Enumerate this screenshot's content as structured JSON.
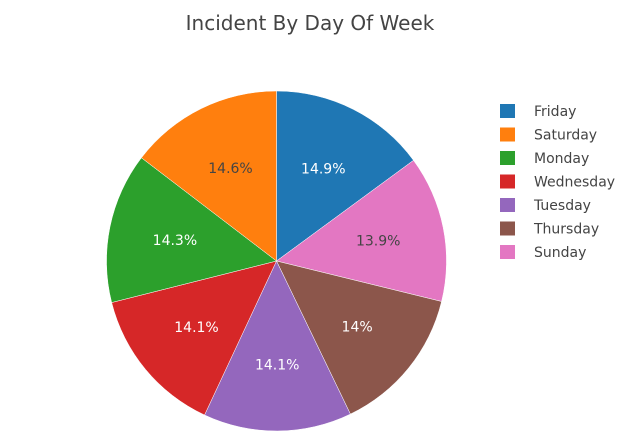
{
  "chart_data": {
    "type": "pie",
    "title": "Incident By Day Of Week",
    "legend_position": "right",
    "slices": [
      {
        "label": "Friday",
        "percent": 14.9,
        "display": "14.9%",
        "color": "#1f77b4",
        "text_color": "#ffffff"
      },
      {
        "label": "Sunday",
        "percent": 13.9,
        "display": "13.9%",
        "color": "#e377c2",
        "text_color": "#444444"
      },
      {
        "label": "Thursday",
        "percent": 14.0,
        "display": "14%",
        "color": "#8c564b",
        "text_color": "#ffffff"
      },
      {
        "label": "Tuesday",
        "percent": 14.1,
        "display": "14.1%",
        "color": "#9467bd",
        "text_color": "#ffffff"
      },
      {
        "label": "Wednesday",
        "percent": 14.1,
        "display": "14.1%",
        "color": "#d62728",
        "text_color": "#ffffff"
      },
      {
        "label": "Monday",
        "percent": 14.3,
        "display": "14.3%",
        "color": "#2ca02c",
        "text_color": "#ffffff"
      },
      {
        "label": "Saturday",
        "percent": 14.6,
        "display": "14.6%",
        "color": "#ff7f0e",
        "text_color": "#444444"
      }
    ],
    "legend": [
      {
        "label": "Friday",
        "color": "#1f77b4"
      },
      {
        "label": "Saturday",
        "color": "#ff7f0e"
      },
      {
        "label": "Monday",
        "color": "#2ca02c"
      },
      {
        "label": "Wednesday",
        "color": "#d62728"
      },
      {
        "label": "Tuesday",
        "color": "#9467bd"
      },
      {
        "label": "Thursday",
        "color": "#8c564b"
      },
      {
        "label": "Sunday",
        "color": "#e377c2"
      }
    ]
  }
}
